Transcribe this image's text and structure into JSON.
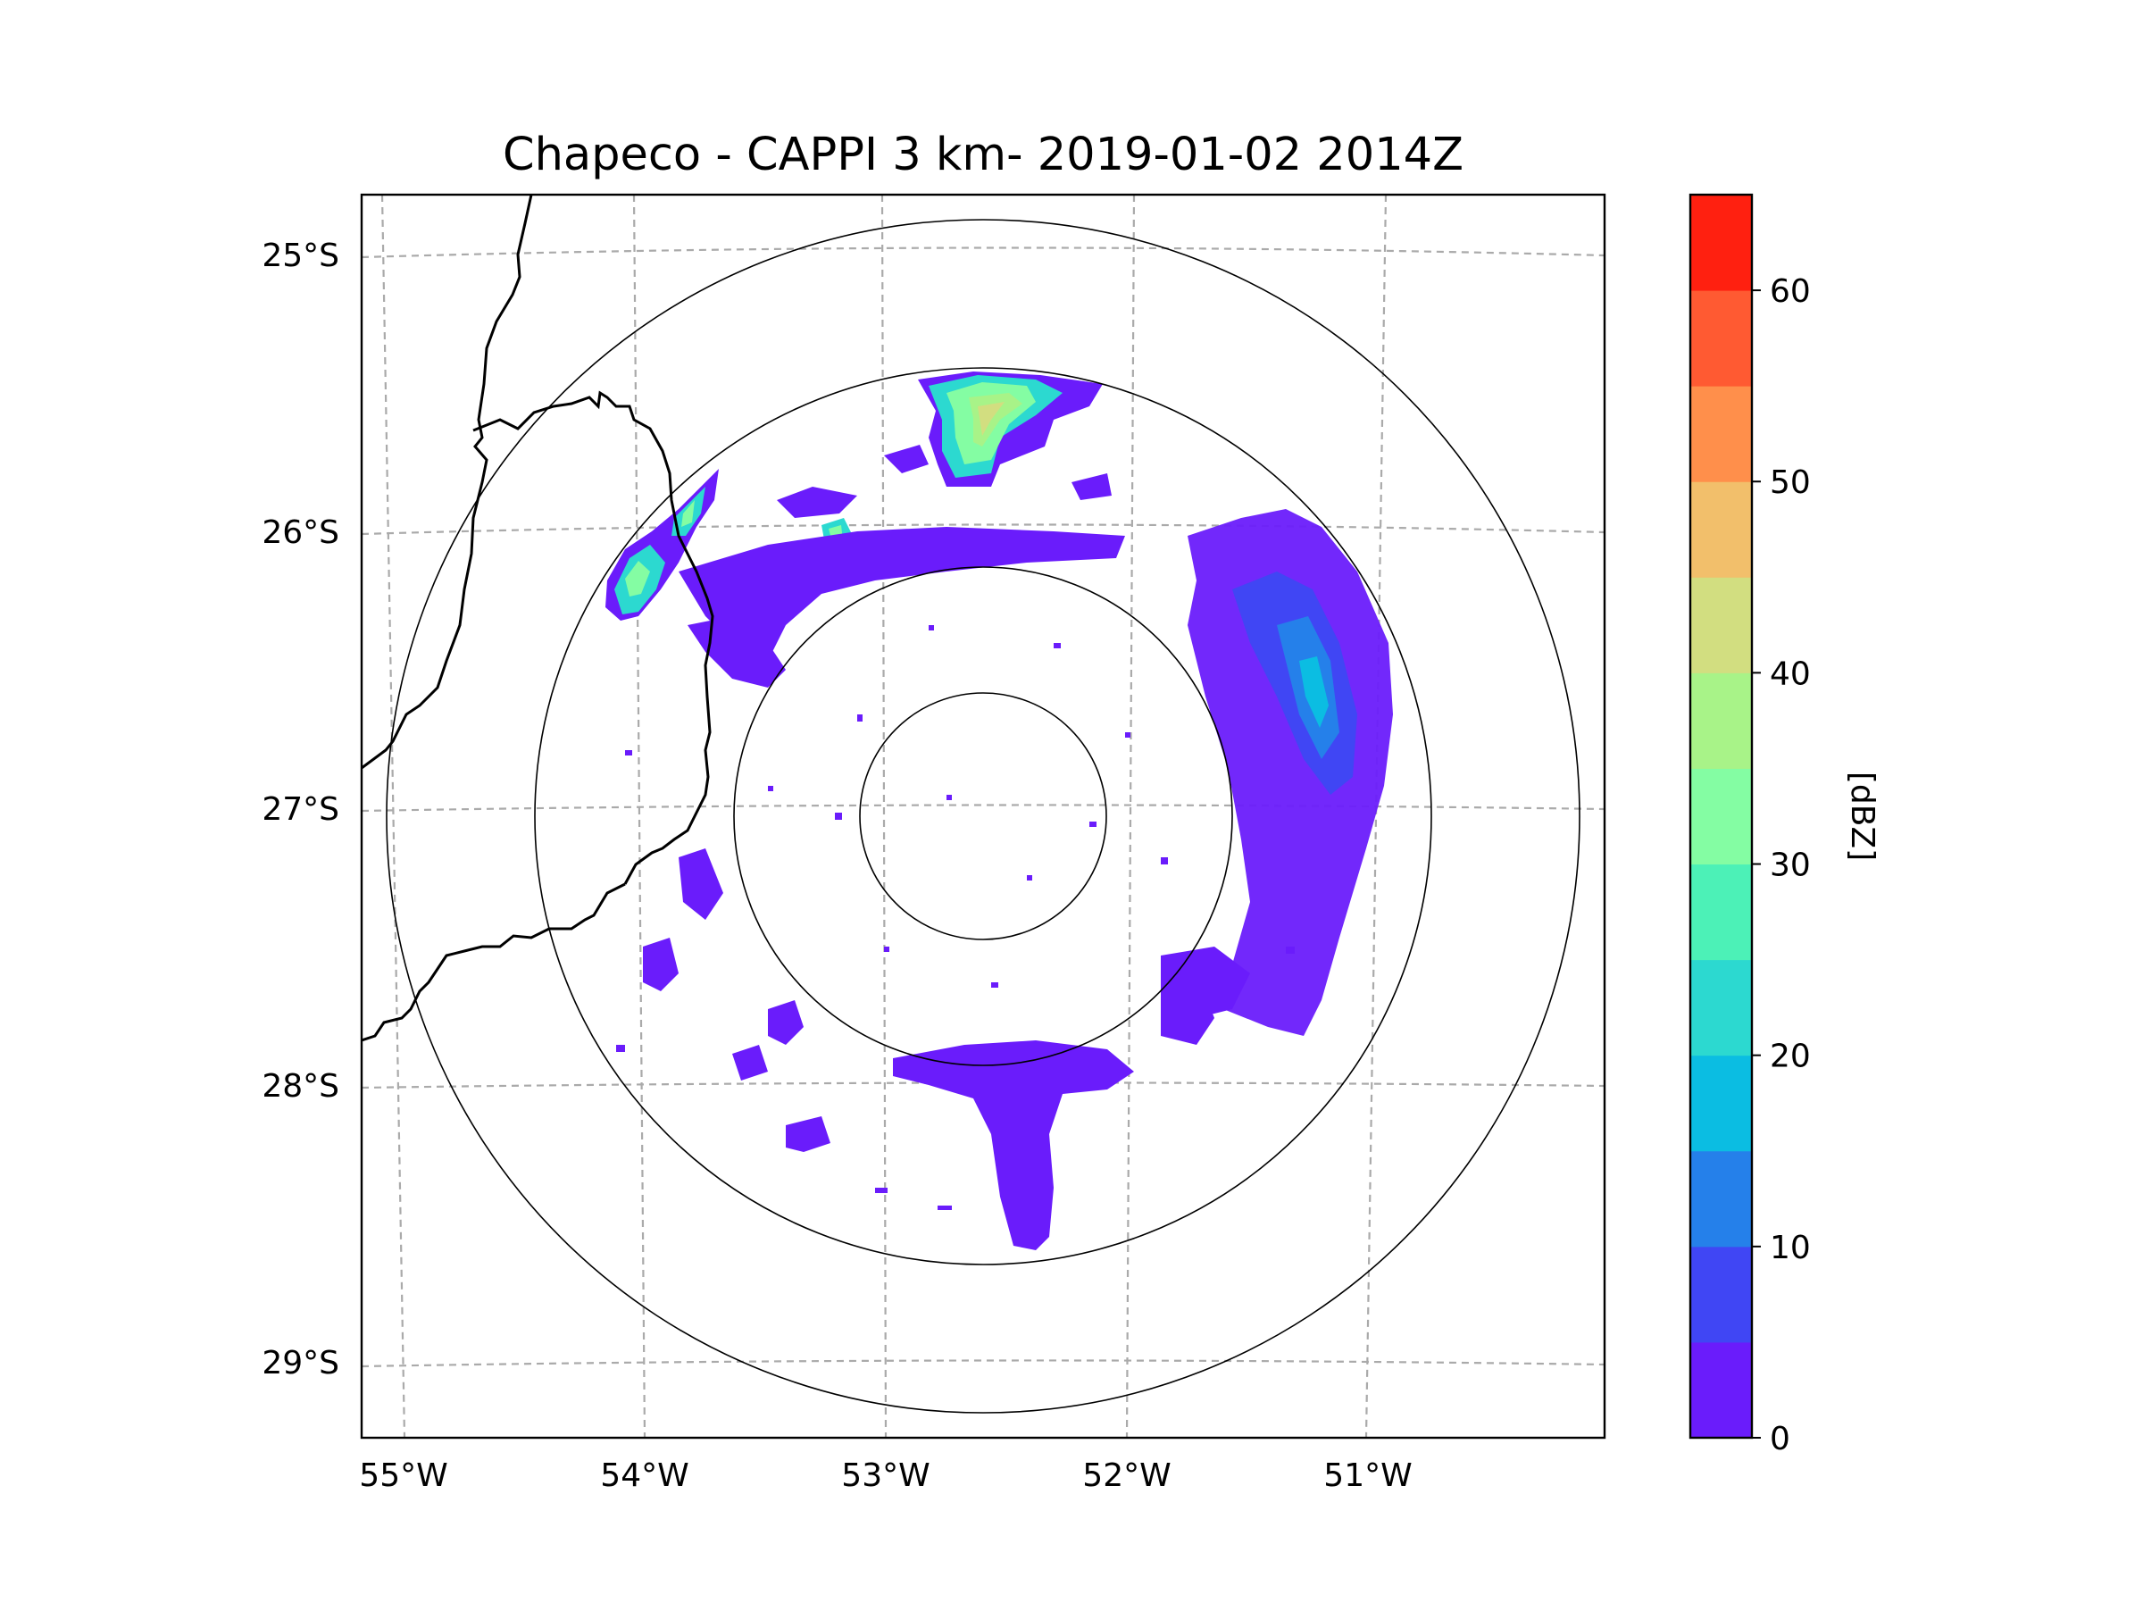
{
  "title": "Chapeco - CAPPI 3 km- 2019-01-02 2014Z",
  "map": {
    "lon_ticks": [
      "55°W",
      "54°W",
      "53°W",
      "52°W",
      "51°W"
    ],
    "lat_ticks": [
      "25°S",
      "26°S",
      "27°S",
      "28°S",
      "29°S"
    ],
    "gridlines": "dashed",
    "range_rings": 4,
    "colors": {
      "rings": "#000000",
      "gridlines": "#aaaaaa",
      "borders": "#000000"
    }
  },
  "colorbar": {
    "label": "[dBZ]",
    "ticks": [
      "0",
      "10",
      "20",
      "30",
      "40",
      "50",
      "60"
    ],
    "min": 0,
    "max": 65,
    "step": 5,
    "colors": [
      "#6a1cfb",
      "#4046f4",
      "#2580ea",
      "#0bbde2",
      "#2cd9d0",
      "#4cf1b7",
      "#84fda3",
      "#a8f388",
      "#d2de80",
      "#f2bf6b",
      "#ff8f4b",
      "#ff5a32",
      "#ff2010"
    ]
  },
  "echoes": [
    {
      "region": "north-cell",
      "dbz": 38
    },
    {
      "region": "northwest-cell",
      "dbz": 30
    },
    {
      "region": "east-band",
      "dbz": 12
    },
    {
      "region": "south-band",
      "dbz": 5
    }
  ]
}
